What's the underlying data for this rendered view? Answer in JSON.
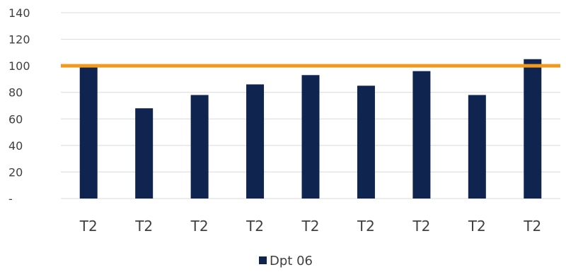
{
  "chart_data": {
    "type": "bar",
    "categories": [
      "T2",
      "T2",
      "T2",
      "T2",
      "T2",
      "T2",
      "T2",
      "T2",
      "T2"
    ],
    "series": [
      {
        "name": "Dpt 06",
        "values": [
          100,
          68,
          78,
          86,
          93,
          85,
          96,
          78,
          105
        ],
        "color": "#0f2550"
      }
    ],
    "reference_line": {
      "value": 100,
      "color": "#f39a1e"
    },
    "ylim": [
      0,
      140
    ],
    "yticks": [
      0,
      20,
      40,
      60,
      80,
      100,
      120,
      140
    ],
    "ytick_labels": [
      "-",
      "20",
      "40",
      "60",
      "80",
      "100",
      "120",
      "140"
    ],
    "grid": true,
    "legend_position": "bottom-center",
    "title": "",
    "xlabel": "",
    "ylabel": ""
  }
}
